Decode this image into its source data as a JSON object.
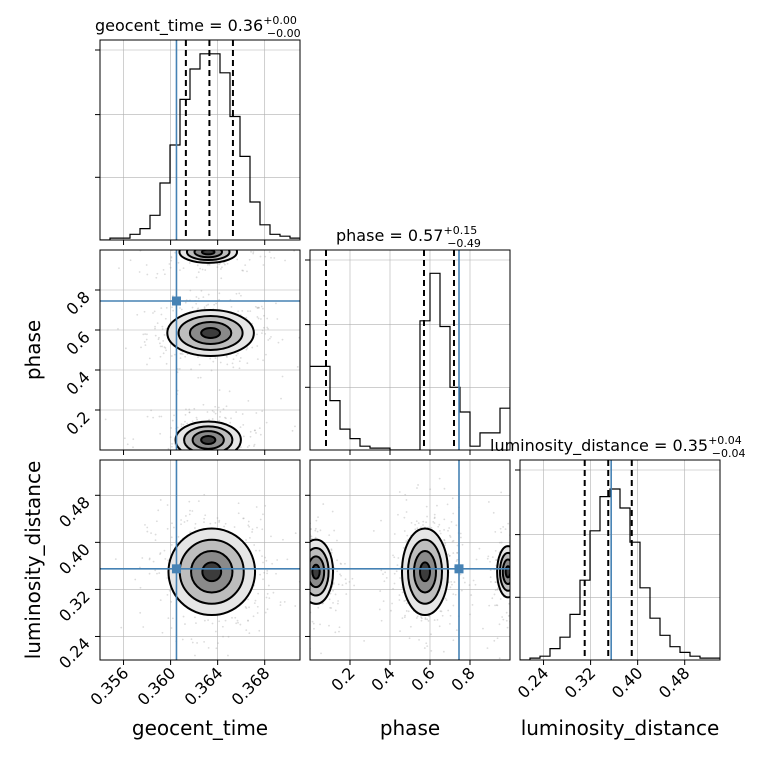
{
  "chart_data": {
    "type": "corner",
    "parameters": [
      "geocent_time",
      "phase",
      "luminosity_distance"
    ],
    "axis_labels": {
      "geocent_time": "geocent_time",
      "phase": "phase",
      "luminosity_distance": "luminosity_distance"
    },
    "ranges": {
      "geocent_time": [
        0.354,
        0.371
      ],
      "phase": [
        0.0,
        1.0
      ],
      "luminosity_distance": [
        0.2,
        0.54
      ]
    },
    "ticks": {
      "geocent_time": [
        0.356,
        0.36,
        0.364,
        0.368
      ],
      "phase": [
        0.2,
        0.4,
        0.6,
        0.8
      ],
      "luminosity_distance": [
        0.24,
        0.32,
        0.4,
        0.48
      ]
    },
    "tick_labels": {
      "geocent_time": [
        "0.356",
        "0.360",
        "0.364",
        "0.368"
      ],
      "phase": [
        "0.2",
        "0.4",
        "0.6",
        "0.8"
      ],
      "luminosity_distance": [
        "0.24",
        "0.32",
        "0.40",
        "0.48"
      ]
    },
    "truths": {
      "geocent_time": 0.3605,
      "phase": 0.745,
      "luminosity_distance": 0.355
    },
    "quantiles": {
      "geocent_time": [
        0.3613,
        0.3633,
        0.3653
      ],
      "phase": [
        0.08,
        0.57,
        0.72
      ],
      "luminosity_distance": [
        0.31,
        0.35,
        0.39
      ]
    },
    "titles": {
      "geocent_time": {
        "name": "geocent_time = 0.36",
        "plus": "+0.00",
        "minus": "−0.00"
      },
      "phase": {
        "name": "phase = 0.57",
        "plus": "+0.15",
        "minus": "−0.49"
      },
      "luminosity_distance": {
        "name": "luminosity_distance = 0.35",
        "plus": "+0.04",
        "minus": "−0.04"
      }
    },
    "hist_1d": {
      "geocent_time": {
        "edges_start": 0.354,
        "bin_width": 0.00085,
        "counts": [
          0,
          1,
          1,
          3,
          6,
          13,
          30,
          50,
          74,
          90,
          98,
          98,
          88,
          65,
          44,
          20,
          8,
          3,
          2,
          1
        ],
        "ymax": 100
      },
      "phase": {
        "edges_start": 0.0,
        "bin_width": 0.05,
        "counts": [
          44,
          44,
          26,
          11,
          6,
          2,
          1,
          1,
          0,
          0,
          0,
          68,
          93,
          65,
          33,
          20,
          2,
          9,
          9,
          22,
          32
        ],
        "ymax": 100
      },
      "luminosity_distance": {
        "edges_start": 0.2,
        "bin_width": 0.017,
        "counts": [
          0,
          1,
          2,
          6,
          12,
          24,
          42,
          68,
          86,
          90,
          80,
          62,
          38,
          22,
          13,
          7,
          4,
          2,
          1,
          1
        ],
        "ymax": 100
      }
    },
    "hist_2d": {
      "phase_vs_geocent_time": {
        "modes": [
          {
            "x": 0.3634,
            "y": 0.585,
            "sx": 0.0016,
            "sy": 0.05,
            "w": 1.0
          },
          {
            "x": 0.3632,
            "y": 0.05,
            "sx": 0.0018,
            "sy": 0.06,
            "w": 0.45
          },
          {
            "x": 0.3632,
            "y": 0.99,
            "sx": 0.0018,
            "sy": 0.04,
            "w": 0.35
          }
        ]
      },
      "luminosity_distance_vs_geocent_time": {
        "modes": [
          {
            "x": 0.3635,
            "y": 0.35,
            "sx": 0.0016,
            "sy": 0.032,
            "w": 1.0
          }
        ]
      },
      "luminosity_distance_vs_phase": {
        "modes": [
          {
            "x": 0.575,
            "y": 0.35,
            "sx": 0.05,
            "sy": 0.032,
            "w": 1.0
          },
          {
            "x": 0.03,
            "y": 0.35,
            "sx": 0.05,
            "sy": 0.032,
            "w": 0.55
          },
          {
            "x": 0.99,
            "y": 0.35,
            "sx": 0.04,
            "sy": 0.032,
            "w": 0.35
          }
        ]
      }
    },
    "colors": {
      "truth": "#4682b4",
      "hist": "#000000",
      "contour": "#000000"
    }
  }
}
